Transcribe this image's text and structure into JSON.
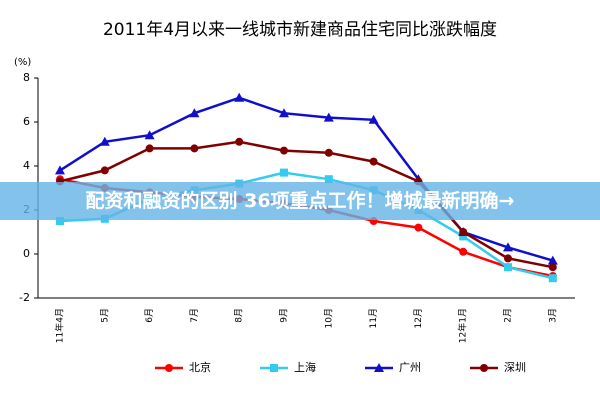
{
  "chart_data": {
    "type": "line",
    "title": "2011年4月以来一线城市新建商品住宅同比涨跌幅度",
    "y_label": "(%)",
    "categories": [
      "11年4月",
      "5月",
      "6月",
      "7月",
      "8月",
      "9月",
      "10月",
      "11月",
      "12月",
      "12年1月",
      "2月",
      "3月"
    ],
    "series": [
      {
        "name": "北京",
        "color": "#ff0000",
        "marker": "circle",
        "values": [
          3.4,
          3.0,
          2.8,
          2.6,
          2.5,
          2.3,
          2.0,
          1.5,
          1.2,
          0.1,
          -0.6,
          -1.0
        ]
      },
      {
        "name": "上海",
        "color": "#33ccee",
        "marker": "square",
        "values": [
          1.5,
          1.6,
          2.5,
          2.9,
          3.2,
          3.7,
          3.4,
          2.9,
          2.0,
          0.8,
          -0.6,
          -1.1
        ]
      },
      {
        "name": "广州",
        "color": "#1010cc",
        "marker": "triangle",
        "values": [
          3.8,
          5.1,
          5.4,
          6.4,
          7.1,
          6.4,
          6.2,
          6.1,
          3.4,
          1.0,
          0.3,
          -0.3
        ]
      },
      {
        "name": "深圳",
        "color": "#800000",
        "marker": "circle",
        "values": [
          3.3,
          3.8,
          4.8,
          4.8,
          5.1,
          4.7,
          4.6,
          4.2,
          3.3,
          1.0,
          -0.2,
          -0.6
        ]
      }
    ],
    "ylim": [
      -2,
      8
    ],
    "yticks": [
      -2,
      0,
      2,
      4,
      6,
      8
    ],
    "legend": "bottom"
  },
  "banner": {
    "text": "配资和融资的区别 36项重点工作！增城最新明确→"
  }
}
